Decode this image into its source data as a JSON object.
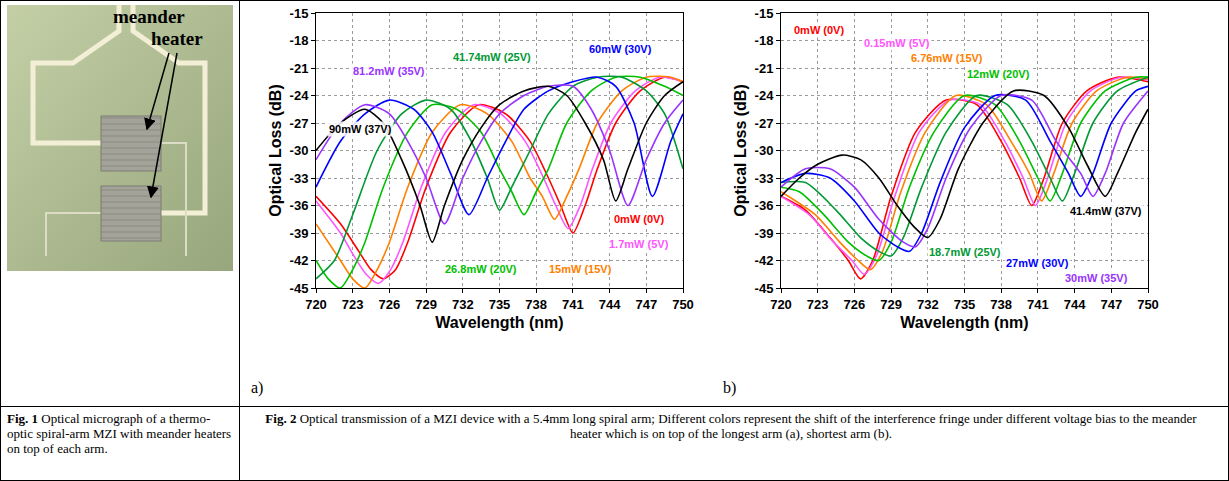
{
  "micrograph": {
    "label": "meander heater"
  },
  "captions": {
    "fig1": {
      "lead": "Fig. 1",
      "text": "Optical micrograph of a thermo-optic spiral-arm MZI with meander heaters on top of each arm."
    },
    "fig2": {
      "lead": "Fig. 2",
      "text": "Optical transmission of a MZI device with a 5.4mm long spiral arm; Different colors represent the shift of the interference fringe under different voltage bias to the meander heater which is on top of the longest arm (a), shortest arm (b)."
    }
  },
  "chart_data": [
    {
      "type": "line",
      "panel": "a)",
      "x_label": "Wavelength (nm)",
      "y_label": "Optical Loss (dB)",
      "xlim": [
        720,
        750
      ],
      "xticks": [
        720,
        723,
        726,
        729,
        732,
        735,
        738,
        741,
        744,
        747,
        750
      ],
      "ylim": [
        -45,
        -15
      ],
      "yticks": [
        -45,
        -42,
        -39,
        -36,
        -33,
        -30,
        -27,
        -24,
        -21,
        -18,
        -15
      ],
      "grid": true,
      "series": [
        {
          "name": "0mW (0V)",
          "color": "#ff0000",
          "x": [
            720,
            722,
            723.5,
            724.5,
            725.5,
            726.5,
            727.5,
            729,
            731,
            733.3,
            735.5,
            737.5,
            739,
            740,
            741,
            742,
            743,
            744.5,
            746.5,
            748.5,
            750
          ],
          "values": [
            -35,
            -38,
            -41,
            -43,
            -44,
            -43,
            -40,
            -34,
            -28,
            -25,
            -26,
            -29,
            -33,
            -36,
            -39,
            -36,
            -32,
            -27,
            -23.5,
            -22,
            -22.5
          ]
        },
        {
          "name": "1.7mW (5V)",
          "color": "#ff55ff",
          "x": [
            720,
            722,
            723.1,
            724.1,
            725.1,
            726.1,
            727.1,
            728.6,
            730.6,
            732.9,
            735.1,
            737.1,
            738.6,
            739.6,
            740.6,
            741.6,
            742.6,
            744.1,
            746.1,
            748.1,
            750
          ],
          "values": [
            -35.5,
            -39,
            -41.5,
            -43.5,
            -44.5,
            -43,
            -40,
            -34,
            -28,
            -25,
            -26,
            -29,
            -33,
            -36,
            -38.5,
            -36,
            -32,
            -27,
            -23.5,
            -22,
            -22.5
          ]
        },
        {
          "name": "15mW (15V)",
          "color": "#ff8000",
          "x": [
            720,
            722,
            723,
            724,
            725,
            726,
            727.5,
            729.5,
            731.8,
            734,
            736,
            737.5,
            738.5,
            739.5,
            740.5,
            741.5,
            743,
            745,
            747,
            749,
            750
          ],
          "values": [
            -38,
            -42,
            -44,
            -45,
            -43,
            -40,
            -34,
            -28,
            -25,
            -26,
            -29,
            -33,
            -35,
            -37.5,
            -35,
            -32,
            -27,
            -23.5,
            -22,
            -22,
            -22.5
          ]
        },
        {
          "name": "26.8mW (20V)",
          "color": "#00c000",
          "x": [
            720,
            721,
            722,
            723,
            724,
            725.5,
            727.5,
            729.5,
            731.5,
            733.5,
            735,
            736,
            737,
            738,
            739,
            740.5,
            742.5,
            744.5,
            746.5,
            748.5,
            750
          ],
          "values": [
            -42,
            -44,
            -45,
            -43,
            -40,
            -34,
            -28,
            -25,
            -25.5,
            -28,
            -32,
            -34.5,
            -37,
            -34.5,
            -32,
            -27,
            -23.5,
            -22,
            -22,
            -23,
            -24
          ]
        },
        {
          "name": "41.74mW (25V)",
          "color": "#009933",
          "x": [
            720,
            721.5,
            723,
            725,
            727,
            729,
            731,
            732.5,
            734,
            735,
            736,
            737.5,
            739,
            741,
            743,
            745,
            747,
            748.5,
            750
          ],
          "values": [
            -44,
            -42,
            -37,
            -30,
            -26,
            -24.5,
            -25.5,
            -28.5,
            -33,
            -36.5,
            -34,
            -30,
            -26,
            -23,
            -22,
            -22,
            -23.5,
            -26,
            -32
          ]
        },
        {
          "name": "60mW (30V)",
          "color": "#0000ff",
          "x": [
            720,
            722,
            724,
            726,
            728,
            729.5,
            731,
            732.5,
            734,
            735.5,
            737,
            739,
            741,
            743,
            744.5,
            746,
            747.5,
            749,
            750
          ],
          "values": [
            -34,
            -29,
            -26,
            -24.5,
            -25.5,
            -28,
            -32.5,
            -37,
            -33,
            -29,
            -25.5,
            -23.5,
            -22.5,
            -22,
            -23,
            -27,
            -35,
            -29,
            -26
          ]
        },
        {
          "name": "81.2mW (35V)",
          "color": "#9933ff",
          "x": [
            720,
            722,
            724,
            726,
            727.5,
            729,
            730.5,
            732,
            733.5,
            735,
            737,
            739,
            741,
            742.5,
            744,
            745.5,
            747,
            748.5,
            750
          ],
          "values": [
            -31,
            -27,
            -25,
            -26,
            -29,
            -33,
            -38,
            -33,
            -29,
            -26,
            -24,
            -23,
            -23,
            -25.5,
            -30,
            -36,
            -31,
            -27,
            -24.5
          ]
        },
        {
          "name": "90mW (37V)",
          "color": "#000000",
          "x": [
            720,
            722,
            724,
            725.5,
            727,
            728.5,
            729.5,
            730.5,
            732,
            733.5,
            735,
            737,
            739,
            740.5,
            742,
            743.5,
            744.5,
            745.5,
            747,
            748.5,
            750
          ],
          "values": [
            -30,
            -27,
            -25.5,
            -27,
            -31,
            -36,
            -40,
            -36,
            -31,
            -27.5,
            -25,
            -23.5,
            -23,
            -24,
            -27,
            -31,
            -35.5,
            -32,
            -27,
            -24,
            -22.5
          ]
        }
      ]
    },
    {
      "type": "line",
      "panel": "b)",
      "x_label": "Wavelength (nm)",
      "y_label": "Optical Loss (dB)",
      "xlim": [
        720,
        750
      ],
      "xticks": [
        720,
        723,
        726,
        729,
        732,
        735,
        738,
        741,
        744,
        747,
        750
      ],
      "ylim": [
        -45,
        -15
      ],
      "yticks": [
        -45,
        -42,
        -39,
        -36,
        -33,
        -30,
        -27,
        -24,
        -21,
        -18,
        -15
      ],
      "grid": true,
      "series": [
        {
          "name": "0mW (0V)",
          "color": "#ff0000",
          "x": [
            720,
            722,
            724,
            725.5,
            726.5,
            727.5,
            729,
            731,
            733.5,
            736,
            738,
            739.5,
            740.5,
            741.5,
            743,
            745,
            747.5,
            750
          ],
          "values": [
            -35,
            -36.5,
            -39.5,
            -42,
            -44,
            -42,
            -35,
            -28,
            -24.5,
            -25,
            -29,
            -33,
            -36,
            -33,
            -27,
            -23.5,
            -22,
            -22.5
          ]
        },
        {
          "name": "0.15mW (5V)",
          "color": "#ff55ff",
          "x": [
            720,
            722.3,
            724.3,
            725.8,
            726.8,
            727.8,
            729.3,
            731.3,
            733.8,
            736.3,
            738.3,
            739.8,
            740.8,
            741.8,
            743.3,
            745.3,
            747.8,
            750
          ],
          "values": [
            -35,
            -37,
            -40,
            -42,
            -43.5,
            -41.5,
            -35,
            -28,
            -24.5,
            -25,
            -29,
            -33,
            -36,
            -33,
            -27,
            -23.5,
            -22,
            -22.3
          ]
        },
        {
          "name": "6.76mW (15V)",
          "color": "#ff8000",
          "x": [
            720,
            722.8,
            724.8,
            726.3,
            727.3,
            728.3,
            729.8,
            731.8,
            734.3,
            736.8,
            738.8,
            740.3,
            741.3,
            742.3,
            743.8,
            745.8,
            748.3,
            750
          ],
          "values": [
            -34.5,
            -37,
            -40,
            -42,
            -43,
            -41,
            -34.5,
            -28,
            -24,
            -25,
            -29,
            -32.5,
            -35.5,
            -32.5,
            -27,
            -23.5,
            -22,
            -22.2
          ]
        },
        {
          "name": "12mW (20V)",
          "color": "#00c000",
          "x": [
            720,
            721.5,
            723.5,
            725.5,
            727,
            728,
            729,
            730.5,
            732.5,
            735,
            737.5,
            739.5,
            741,
            742,
            743,
            744.5,
            746.5,
            749,
            750
          ],
          "values": [
            -34,
            -34.5,
            -37,
            -40,
            -41.5,
            -42,
            -40,
            -34,
            -28,
            -24,
            -25,
            -29,
            -33,
            -35.5,
            -32.5,
            -27,
            -23.5,
            -22,
            -22
          ]
        },
        {
          "name": "18.7mW (25V)",
          "color": "#009933",
          "x": [
            720,
            722,
            724.5,
            726.5,
            728,
            729,
            730,
            731.5,
            733.5,
            736,
            738.5,
            740.5,
            742,
            743,
            744,
            745.5,
            747.5,
            750
          ],
          "values": [
            -33.5,
            -33.5,
            -36.5,
            -39.5,
            -41,
            -41.5,
            -39.5,
            -34,
            -28,
            -24,
            -25,
            -29,
            -33,
            -35.5,
            -32.5,
            -27,
            -23.5,
            -22
          ]
        },
        {
          "name": "27mW (30V)",
          "color": "#0000ff",
          "x": [
            720,
            722,
            724,
            726,
            728,
            729.5,
            730.5,
            731.5,
            733,
            735,
            737.5,
            740,
            742,
            743.5,
            744.5,
            745.5,
            747,
            749,
            750
          ],
          "values": [
            -33.5,
            -32.5,
            -33,
            -35.5,
            -39,
            -40.5,
            -41,
            -39,
            -33.5,
            -27.5,
            -24,
            -24.5,
            -29,
            -32.5,
            -35,
            -32.5,
            -27,
            -23.5,
            -23
          ]
        },
        {
          "name": "30mW (35V)",
          "color": "#9933ff",
          "x": [
            720,
            722,
            724,
            726,
            728,
            730,
            731,
            732,
            733.5,
            735.5,
            738,
            740.5,
            742.5,
            744.5,
            745.5,
            746.5,
            748,
            750
          ],
          "values": [
            -34,
            -32,
            -32,
            -34,
            -37.5,
            -40,
            -40.5,
            -38.5,
            -33,
            -27.5,
            -24,
            -24.5,
            -29,
            -32.5,
            -35,
            -32.5,
            -27,
            -23.5
          ]
        },
        {
          "name": "41.4mW (37V)",
          "color": "#000000",
          "x": [
            720,
            721.5,
            723,
            725,
            726.5,
            728,
            729.5,
            731,
            732,
            733,
            734.5,
            736.5,
            739,
            741.5,
            743.5,
            745,
            746.5,
            747.5,
            749,
            750
          ],
          "values": [
            -35,
            -33,
            -31.5,
            -30.5,
            -31,
            -33,
            -36,
            -38.5,
            -39.5,
            -37.5,
            -32,
            -27,
            -23.5,
            -24,
            -27.5,
            -31.5,
            -35,
            -32.5,
            -28,
            -25.5
          ]
        }
      ]
    }
  ]
}
